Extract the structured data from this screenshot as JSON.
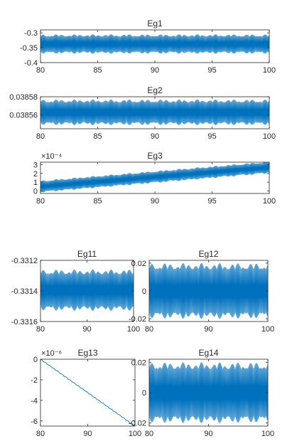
{
  "chart_data": [
    {
      "type": "line",
      "title": "Eg1",
      "xlim": [
        80,
        100
      ],
      "ylim": [
        -0.4,
        -0.29
      ],
      "x_ticks": [
        80,
        85,
        90,
        95,
        100
      ],
      "x_tick_labels": [
        "80",
        "85",
        "90",
        "95",
        "100"
      ],
      "y_ticks": [
        -0.3,
        -0.35,
        -0.4
      ],
      "y_tick_labels": [
        "-0.3",
        "-0.35",
        "-0.4"
      ],
      "signal": {
        "kind": "oscillation",
        "center": -0.34,
        "amplitude_min": -0.37,
        "amplitude_max": -0.305,
        "trend": "flat"
      },
      "color": "#0072BD",
      "grid": false
    },
    {
      "type": "line",
      "title": "Eg2",
      "xlim": [
        80,
        100
      ],
      "ylim": [
        0.038545,
        0.03858
      ],
      "x_ticks": [
        80,
        85,
        90,
        95,
        100
      ],
      "x_tick_labels": [
        "80",
        "85",
        "90",
        "95",
        "100"
      ],
      "y_ticks": [
        0.03858,
        0.03856
      ],
      "y_tick_labels": [
        "0.03858",
        "0.03856"
      ],
      "signal": {
        "kind": "oscillation",
        "center": 0.038563,
        "amplitude_min": 0.038549,
        "amplitude_max": 0.038577,
        "trend": "flat"
      },
      "color": "#0072BD",
      "grid": false
    },
    {
      "type": "line",
      "title": "Eg3",
      "exponent_label": "×10⁻⁴",
      "xlim": [
        80,
        100
      ],
      "ylim": [
        -0.3,
        3.3
      ],
      "x_ticks": [
        80,
        85,
        90,
        95,
        100
      ],
      "x_tick_labels": [
        "80",
        "85",
        "90",
        "95",
        "100"
      ],
      "y_ticks": [
        3,
        2,
        1,
        0
      ],
      "y_tick_labels": [
        "3",
        "2",
        "1",
        "0"
      ],
      "signal": {
        "kind": "oscillating_ramp",
        "start": 0.5,
        "end": 2.7,
        "band": 0.7
      },
      "color": "#0072BD",
      "grid": false
    },
    {
      "type": "line",
      "title": "Eg11",
      "xlim": [
        80,
        100
      ],
      "ylim": [
        -0.3316,
        -0.3312
      ],
      "x_ticks": [
        80,
        90,
        100
      ],
      "x_tick_labels": [
        "80",
        "90",
        "100"
      ],
      "y_ticks": [
        -0.3312,
        -0.3314,
        -0.3316
      ],
      "y_tick_labels": [
        "-0.3312",
        "-0.3314",
        "-0.3316"
      ],
      "signal": {
        "kind": "oscillation",
        "center": -0.33139,
        "amplitude_min": -0.33153,
        "amplitude_max": -0.33126,
        "trend": "flat"
      },
      "color": "#0072BD",
      "grid": false
    },
    {
      "type": "line",
      "title": "Eg12",
      "xlim": [
        80,
        100
      ],
      "ylim": [
        -0.022,
        0.022
      ],
      "x_ticks": [
        80,
        90,
        100
      ],
      "x_tick_labels": [
        "80",
        "90",
        "100"
      ],
      "y_ticks": [
        0.02,
        0,
        -0.02
      ],
      "y_tick_labels": [
        "0.02",
        "0",
        "-0.02"
      ],
      "signal": {
        "kind": "oscillation",
        "center": 0,
        "amplitude_min": -0.02,
        "amplitude_max": 0.02,
        "trend": "flat"
      },
      "color": "#0072BD",
      "grid": false
    },
    {
      "type": "line",
      "title": "Eg13",
      "exponent_label": "×10⁻⁶",
      "xlim": [
        80,
        100
      ],
      "ylim": [
        -6.5,
        0
      ],
      "x_ticks": [
        80,
        90,
        100
      ],
      "x_tick_labels": [
        "80",
        "90",
        "100"
      ],
      "y_ticks": [
        0,
        -2,
        -4,
        -6
      ],
      "y_tick_labels": [
        "0",
        "-2",
        "-4",
        "-6"
      ],
      "signal": {
        "kind": "ramp",
        "start": 0,
        "end": -6.5
      },
      "color": "#0072BD",
      "grid": false
    },
    {
      "type": "line",
      "title": "Eg14",
      "xlim": [
        80,
        100
      ],
      "ylim": [
        -0.022,
        0.022
      ],
      "x_ticks": [
        80,
        90,
        100
      ],
      "x_tick_labels": [
        "80",
        "90",
        "100"
      ],
      "y_ticks": [
        0.02,
        0,
        -0.02
      ],
      "y_tick_labels": [
        "0.02",
        "0",
        "-0.02"
      ],
      "signal": {
        "kind": "oscillation",
        "center": 0,
        "amplitude_min": -0.02,
        "amplitude_max": 0.02,
        "trend": "flat"
      },
      "color": "#0072BD",
      "grid": false
    }
  ]
}
